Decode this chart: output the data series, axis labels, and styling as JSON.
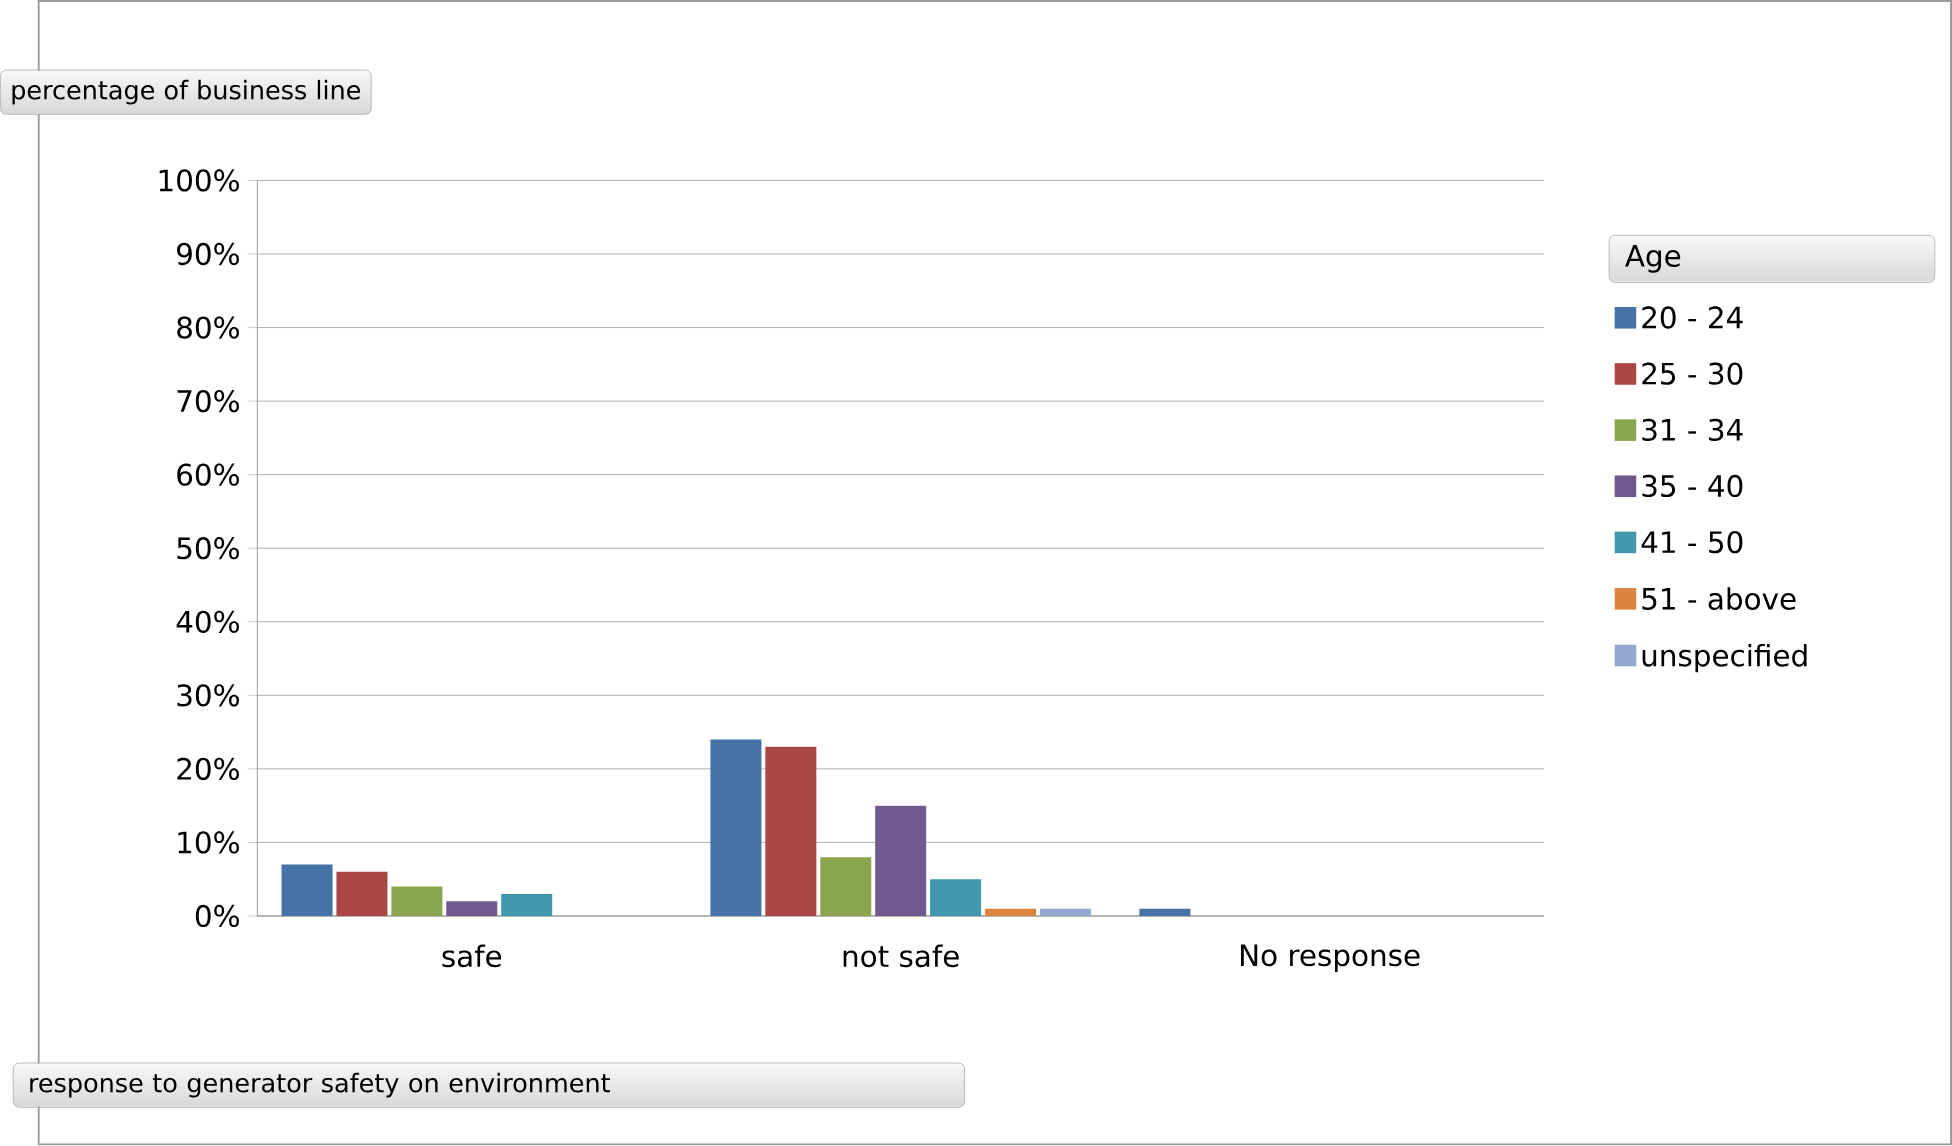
{
  "chart_data": {
    "type": "bar",
    "ylabel": "percentage of business line",
    "xlabel": "response to generator safety on environment",
    "legend_title": "Age",
    "categories": [
      "safe",
      "not safe",
      "No response"
    ],
    "series": [
      {
        "name": "20 - 24",
        "color": "#4572a7",
        "values": [
          7,
          24,
          1
        ]
      },
      {
        "name": "25 - 30",
        "color": "#aa4643",
        "values": [
          6,
          23,
          0
        ]
      },
      {
        "name": "31 - 34",
        "color": "#89a54e",
        "values": [
          4,
          8,
          0
        ]
      },
      {
        "name": "35 - 40",
        "color": "#71588f",
        "values": [
          2,
          15,
          0
        ]
      },
      {
        "name": "41 - 50",
        "color": "#4198af",
        "values": [
          3,
          5,
          0
        ]
      },
      {
        "name": "51 - above",
        "color": "#db843d",
        "values": [
          0,
          1,
          0
        ]
      },
      {
        "name": "unspecified",
        "color": "#93a9cf",
        "values": [
          0,
          1,
          0
        ]
      }
    ],
    "ylim": [
      0,
      100
    ],
    "yticks": [
      {
        "value": 0,
        "label": "0%"
      },
      {
        "value": 10,
        "label": "10%"
      },
      {
        "value": 20,
        "label": "20%"
      },
      {
        "value": 30,
        "label": "30%"
      },
      {
        "value": 40,
        "label": "40%"
      },
      {
        "value": 50,
        "label": "50%"
      },
      {
        "value": 60,
        "label": "60%"
      },
      {
        "value": 70,
        "label": "70%"
      },
      {
        "value": 80,
        "label": "80%"
      },
      {
        "value": 90,
        "label": "90%"
      },
      {
        "value": 100,
        "label": "100%"
      }
    ],
    "grid": "y",
    "legend": "right"
  }
}
